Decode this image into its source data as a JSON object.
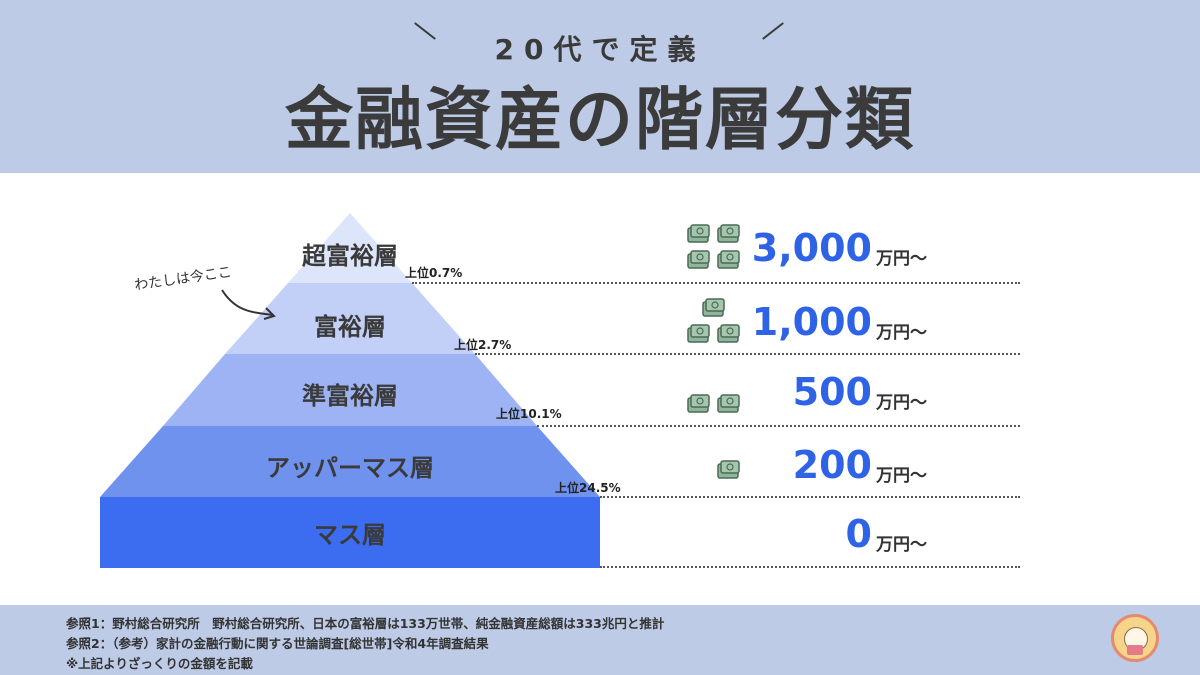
{
  "header": {
    "subtitle": "20代で定義",
    "title": "金融資産の階層分類"
  },
  "annotation": {
    "text": "わたしは今ここ",
    "points_to": "富裕層"
  },
  "tiers": [
    {
      "label": "超富裕層",
      "percentile": "上位0.7%",
      "amount": "3,000",
      "unit": "万円〜",
      "money_icons": 4,
      "color": "#dde5fa"
    },
    {
      "label": "富裕層",
      "percentile": "上位2.7%",
      "amount": "1,000",
      "unit": "万円〜",
      "money_icons": 3,
      "color": "#c2d0f7"
    },
    {
      "label": "準富裕層",
      "percentile": "上位10.1%",
      "amount": "500",
      "unit": "万円〜",
      "money_icons": 2,
      "color": "#9db3f3"
    },
    {
      "label": "アッパーマス層",
      "percentile": "上位24.5%",
      "amount": "200",
      "unit": "万円〜",
      "money_icons": 1,
      "color": "#6f92ef"
    },
    {
      "label": "マス層",
      "percentile": "",
      "amount": "0",
      "unit": "万円〜",
      "money_icons": 0,
      "color": "#3c6df0"
    }
  ],
  "footer": {
    "notes": [
      "参照1：野村総合研究所　野村総合研究所、日本の富裕層は133万世帯、純金融資産総額は333兆円と推計",
      "参照2：（参考）家計の金融行動に関する世論調査[総世帯]令和4年調査結果",
      "※上記よりざっくりの金額を記載"
    ]
  },
  "icons": {
    "money": "money-stack-icon",
    "avatar": "author-avatar-icon",
    "arrow": "curved-arrow-icon"
  }
}
